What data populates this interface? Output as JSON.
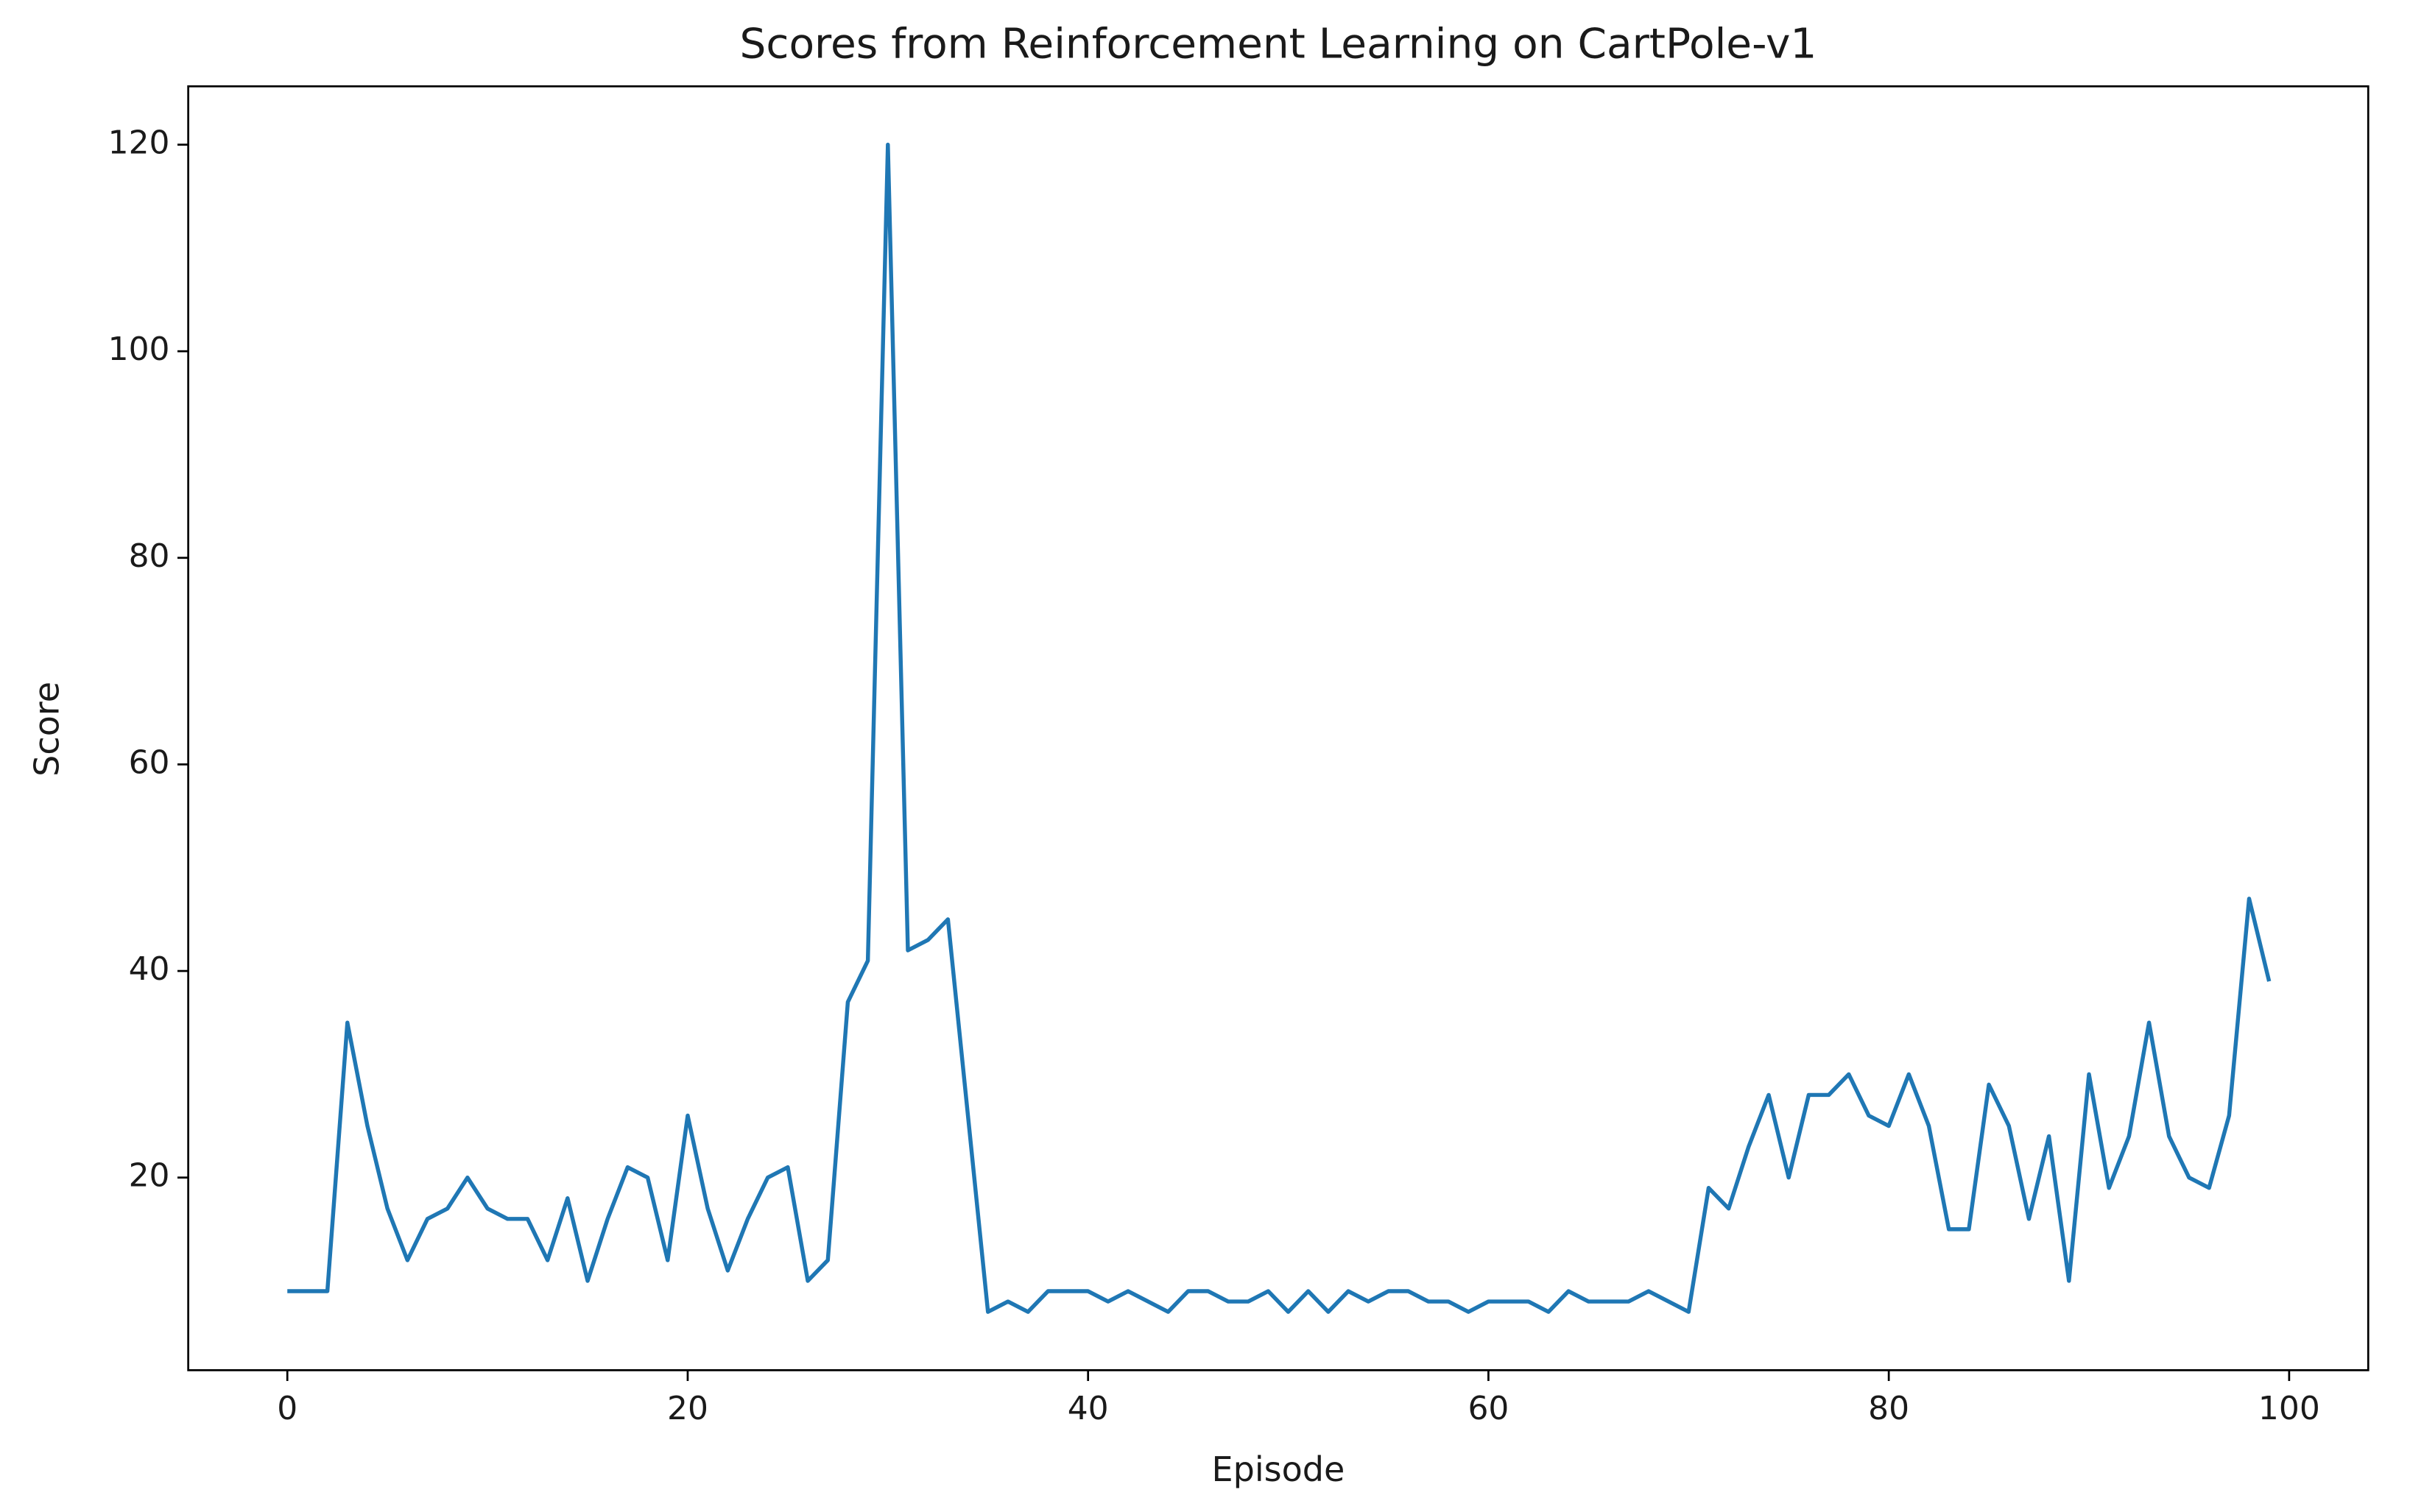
{
  "chart_data": {
    "type": "line",
    "title": "Scores from Reinforcement Learning on CartPole-v1",
    "x_label": "Episode",
    "y_label": "Score",
    "x": [
      0,
      1,
      2,
      3,
      4,
      5,
      6,
      7,
      8,
      9,
      10,
      11,
      12,
      13,
      14,
      15,
      16,
      17,
      18,
      19,
      20,
      21,
      22,
      23,
      24,
      25,
      26,
      27,
      28,
      29,
      30,
      31,
      32,
      33,
      34,
      35,
      36,
      37,
      38,
      39,
      40,
      41,
      42,
      43,
      44,
      45,
      46,
      47,
      48,
      49,
      50,
      51,
      52,
      53,
      54,
      55,
      56,
      57,
      58,
      59,
      60,
      61,
      62,
      63,
      64,
      65,
      66,
      67,
      68,
      69,
      70,
      71,
      72,
      73,
      74,
      75,
      76,
      77,
      78,
      79,
      80,
      81,
      82,
      83,
      84,
      85,
      86,
      87,
      88,
      89,
      90,
      91,
      92,
      93,
      94,
      95,
      96,
      97,
      98,
      99
    ],
    "series": [
      {
        "color": "#1f77b4",
        "values": [
          9,
          9,
          9,
          35,
          25,
          17,
          12,
          16,
          17,
          20,
          17,
          16,
          16,
          12,
          18,
          10,
          16,
          21,
          20,
          12,
          26,
          17,
          11,
          16,
          20,
          21,
          10,
          12,
          37,
          41,
          120,
          42,
          43,
          45,
          26,
          7,
          8,
          7,
          9,
          9,
          9,
          8,
          9,
          8,
          7,
          9,
          9,
          8,
          8,
          9,
          7,
          9,
          7,
          9,
          8,
          9,
          9,
          8,
          8,
          7,
          8,
          8,
          8,
          7,
          9,
          8,
          8,
          8,
          9,
          8,
          7,
          19,
          17,
          23,
          28,
          20,
          28,
          28,
          30,
          26,
          25,
          30,
          25,
          15,
          15,
          29,
          25,
          16,
          24,
          10,
          30,
          19,
          24,
          35,
          24,
          20,
          19,
          26,
          47,
          39
        ]
      }
    ],
    "xlim": [
      -4.95,
      103.95
    ],
    "ylim": [
      1.35,
      125.65
    ],
    "xticks": [
      0,
      20,
      40,
      60,
      80,
      100
    ],
    "yticks": [
      20,
      40,
      60,
      80,
      100,
      120
    ]
  }
}
